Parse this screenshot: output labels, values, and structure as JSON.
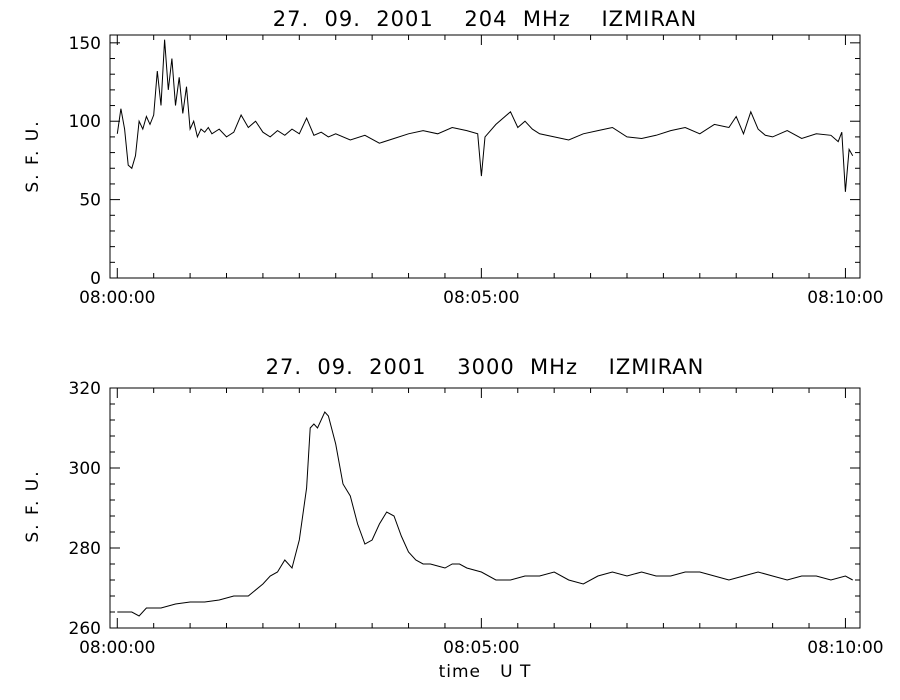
{
  "chart_data": [
    {
      "type": "line",
      "title": "27.  09.  2001    204  MHz    IZMIRAN",
      "ylabel": "S. F. U.",
      "xlabel": "",
      "x_ticks": [
        "08:00:00",
        "08:05:00",
        "08:10:00"
      ],
      "xlim_minutes": [
        -0.1,
        10.2
      ],
      "ylim": [
        0,
        155
      ],
      "y_ticks": [
        0,
        50,
        100,
        150
      ],
      "grid": false,
      "series": [
        {
          "x": [
            0,
            0.05,
            0.1,
            0.15,
            0.2,
            0.25,
            0.3,
            0.35,
            0.4,
            0.45,
            0.5,
            0.55,
            0.6,
            0.65,
            0.7,
            0.75,
            0.8,
            0.85,
            0.9,
            0.95,
            1.0,
            1.05,
            1.1,
            1.15,
            1.2,
            1.25,
            1.3,
            1.4,
            1.5,
            1.6,
            1.7,
            1.8,
            1.9,
            2.0,
            2.1,
            2.2,
            2.3,
            2.4,
            2.5,
            2.6,
            2.7,
            2.8,
            2.9,
            3.0,
            3.2,
            3.4,
            3.6,
            3.8,
            4.0,
            4.2,
            4.4,
            4.6,
            4.8,
            4.95,
            5.0,
            5.05,
            5.2,
            5.4,
            5.5,
            5.6,
            5.7,
            5.8,
            6.0,
            6.2,
            6.4,
            6.6,
            6.8,
            7.0,
            7.2,
            7.4,
            7.6,
            7.8,
            8.0,
            8.2,
            8.4,
            8.5,
            8.6,
            8.7,
            8.8,
            8.9,
            9.0,
            9.2,
            9.4,
            9.6,
            9.8,
            9.9,
            9.95,
            10.0,
            10.05,
            10.1
          ],
          "y": [
            92,
            108,
            95,
            72,
            70,
            78,
            100,
            95,
            103,
            98,
            104,
            132,
            110,
            152,
            120,
            140,
            110,
            128,
            105,
            122,
            95,
            100,
            90,
            95,
            93,
            96,
            92,
            95,
            90,
            93,
            104,
            96,
            100,
            93,
            90,
            94,
            91,
            95,
            92,
            102,
            91,
            93,
            90,
            92,
            88,
            91,
            86,
            89,
            92,
            94,
            92,
            96,
            94,
            92,
            65,
            90,
            98,
            106,
            96,
            100,
            95,
            92,
            90,
            88,
            92,
            94,
            96,
            90,
            89,
            91,
            94,
            96,
            92,
            98,
            96,
            103,
            92,
            106,
            95,
            91,
            90,
            94,
            89,
            92,
            91,
            87,
            93,
            55,
            82,
            78
          ]
        }
      ]
    },
    {
      "type": "line",
      "title": "27.  09.  2001    3000  MHz    IZMIRAN",
      "ylabel": "S. F. U.",
      "xlabel": "time   U T",
      "x_ticks": [
        "08:00:00",
        "08:05:00",
        "08:10:00"
      ],
      "xlim_minutes": [
        -0.1,
        10.2
      ],
      "ylim": [
        260,
        320
      ],
      "y_ticks": [
        260,
        280,
        300,
        320
      ],
      "grid": false,
      "series": [
        {
          "x": [
            0,
            0.2,
            0.3,
            0.4,
            0.6,
            0.8,
            1.0,
            1.2,
            1.4,
            1.6,
            1.8,
            2.0,
            2.1,
            2.2,
            2.3,
            2.4,
            2.5,
            2.6,
            2.65,
            2.7,
            2.75,
            2.85,
            2.9,
            3.0,
            3.1,
            3.2,
            3.3,
            3.4,
            3.5,
            3.6,
            3.7,
            3.8,
            3.9,
            4.0,
            4.1,
            4.2,
            4.3,
            4.4,
            4.5,
            4.6,
            4.7,
            4.8,
            5.0,
            5.2,
            5.4,
            5.6,
            5.8,
            6.0,
            6.2,
            6.4,
            6.6,
            6.8,
            7.0,
            7.2,
            7.4,
            7.6,
            7.8,
            8.0,
            8.2,
            8.4,
            8.6,
            8.8,
            9.0,
            9.2,
            9.4,
            9.6,
            9.8,
            10.0,
            10.1
          ],
          "y": [
            264,
            264,
            263,
            265,
            265,
            266,
            266.5,
            266.5,
            267,
            268,
            268,
            271,
            273,
            274,
            277,
            275,
            282,
            295,
            310,
            311,
            310,
            314,
            313,
            306,
            296,
            293,
            286,
            281,
            282,
            286,
            289,
            288,
            283,
            279,
            277,
            276,
            276,
            275.5,
            275,
            276,
            276,
            275,
            274,
            272,
            272,
            273,
            273,
            274,
            272,
            271,
            273,
            274,
            273,
            274,
            273,
            273,
            274,
            274,
            273,
            272,
            273,
            274,
            273,
            272,
            273,
            273,
            272,
            273,
            272
          ]
        }
      ]
    }
  ]
}
